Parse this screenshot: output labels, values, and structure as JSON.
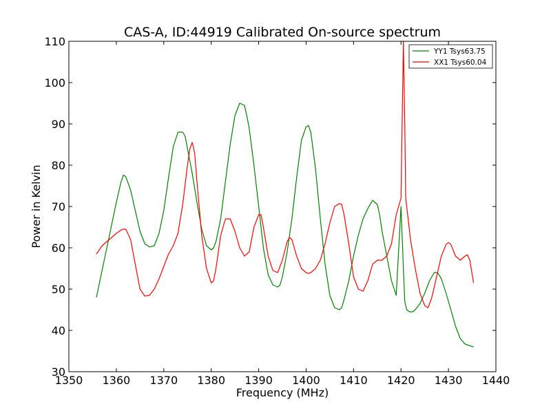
{
  "chart_data": {
    "type": "line",
    "title": "CAS-A, ID:44919 Calibrated On-source spectrum",
    "xlabel": "Frequency (MHz)",
    "ylabel": "Power in Kelvin",
    "xlim": [
      1350,
      1440
    ],
    "ylim": [
      30,
      110
    ],
    "xticks": [
      "1350",
      "1360",
      "1370",
      "1380",
      "1390",
      "1400",
      "1410",
      "1420",
      "1430",
      "1440"
    ],
    "yticks": [
      "30",
      "40",
      "50",
      "60",
      "70",
      "80",
      "90",
      "100",
      "110"
    ],
    "grid": false,
    "legend_position": "top-right",
    "series": [
      {
        "name": "YY1 Tsys63.75",
        "color": "#008000",
        "x": [
          1355.8,
          1358,
          1360,
          1361,
          1361.5,
          1362,
          1363,
          1364,
          1365,
          1366,
          1367,
          1368,
          1369,
          1370,
          1371,
          1372,
          1373,
          1374,
          1374.5,
          1375,
          1376,
          1377,
          1378,
          1379,
          1380,
          1380.5,
          1381,
          1382,
          1383,
          1384,
          1385,
          1386,
          1387,
          1387.5,
          1388,
          1389,
          1390,
          1391,
          1392,
          1393,
          1394,
          1394.5,
          1395,
          1396,
          1397,
          1398,
          1399,
          1400,
          1400.5,
          1401,
          1402,
          1403,
          1404,
          1405,
          1406,
          1407,
          1407.5,
          1408,
          1409,
          1410,
          1411,
          1412,
          1413,
          1414,
          1415,
          1415.5,
          1416,
          1417,
          1418,
          1419,
          1420,
          1420.5,
          1420.8,
          1421.2,
          1421.8,
          1422.5,
          1423,
          1424,
          1425,
          1426,
          1427,
          1427.7,
          1428.5,
          1429.5,
          1430.5,
          1431.5,
          1432.5,
          1433.5,
          1434.5,
          1435.3
        ],
        "values": [
          48,
          60,
          71,
          76,
          77.6,
          77.2,
          74,
          69,
          64,
          61,
          60.2,
          60.5,
          63.5,
          69,
          77,
          84.5,
          88,
          88,
          87,
          84,
          78,
          71,
          64.5,
          60.5,
          59.5,
          60,
          61.5,
          67,
          76,
          85,
          92,
          95,
          94.5,
          92,
          89,
          80,
          70,
          60,
          53.5,
          51,
          50.5,
          51,
          53,
          59,
          67,
          77,
          86,
          89.3,
          89.6,
          88,
          79,
          67,
          56,
          48.5,
          45.5,
          45,
          45.5,
          47.5,
          52,
          58,
          63,
          67,
          69.5,
          71.5,
          70.5,
          68,
          64,
          58,
          52,
          48.5,
          70,
          55,
          47,
          45,
          44.5,
          44.5,
          45,
          46.5,
          49,
          52,
          54,
          54,
          52.5,
          49,
          45,
          41,
          38,
          36.7,
          36.3,
          36
        ]
      },
      {
        "name": "XX1 Tsys60.04",
        "color": "#ff0000",
        "x": [
          1355.8,
          1357,
          1358,
          1359,
          1360,
          1361,
          1361.5,
          1362,
          1363,
          1364,
          1365,
          1366,
          1367,
          1368,
          1369,
          1370,
          1371,
          1372,
          1373,
          1374,
          1375,
          1375.5,
          1376,
          1376.5,
          1377,
          1378,
          1379,
          1380,
          1380.5,
          1381,
          1382,
          1383,
          1384,
          1385,
          1386,
          1387,
          1388,
          1389,
          1390,
          1390.5,
          1391,
          1392,
          1393,
          1394,
          1395,
          1396,
          1396.5,
          1397,
          1398,
          1399,
          1400,
          1400.5,
          1401,
          1402,
          1403,
          1404,
          1405,
          1406,
          1407,
          1407.5,
          1408,
          1409,
          1410,
          1411,
          1412,
          1413,
          1414,
          1415,
          1416,
          1417,
          1418,
          1419,
          1420,
          1420.5,
          1420.8,
          1421,
          1421.5,
          1422,
          1423,
          1424,
          1425,
          1425.7,
          1426.5,
          1427.5,
          1428.5,
          1429.5,
          1430,
          1430.5,
          1431.5,
          1432.5,
          1433.5,
          1434,
          1434.5,
          1435.3
        ],
        "values": [
          58.5,
          60.5,
          61.5,
          62.5,
          63.5,
          64.3,
          64.5,
          64.5,
          62,
          56,
          50,
          48.3,
          48.5,
          50,
          52.5,
          55.5,
          58.5,
          60.5,
          63.5,
          70.5,
          80,
          84,
          85.5,
          83,
          76,
          63,
          55,
          51.5,
          52,
          55,
          63,
          67,
          67,
          64,
          60,
          58,
          59,
          65,
          68,
          68,
          65,
          58,
          54.5,
          54,
          57,
          61.5,
          62.5,
          62,
          58,
          55,
          54,
          53.8,
          54,
          55,
          57,
          61,
          66,
          70,
          70.7,
          70.5,
          68,
          61,
          53,
          50,
          49.5,
          52,
          56,
          57,
          57,
          58,
          61,
          68,
          72,
          110,
          90,
          72,
          67,
          62,
          55,
          49,
          46,
          45.5,
          48,
          53,
          58,
          60.8,
          61.3,
          60.8,
          58,
          57,
          58,
          58.3,
          57,
          51.5
        ]
      }
    ]
  }
}
